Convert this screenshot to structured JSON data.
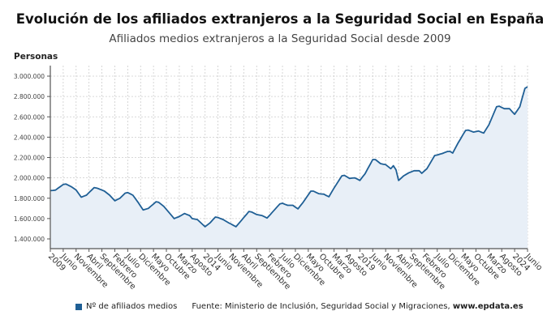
{
  "chart_data": {
    "type": "area",
    "title": "Evolución de los afiliados extranjeros a la Seguridad Social en España",
    "subtitle": "Afiliados medios extranjeros a la Seguridad Social desde 2009",
    "ylabel": "Personas",
    "ylim": [
      1300000,
      3100000
    ],
    "yticks": [
      "1.400.000",
      "1.600.000",
      "1.800.000",
      "2.000.000",
      "2.200.000",
      "2.400.000",
      "2.600.000",
      "2.800.000",
      "3.000.000"
    ],
    "ytick_values": [
      1400000,
      1600000,
      1800000,
      2000000,
      2200000,
      2400000,
      2600000,
      2800000,
      3000000
    ],
    "x_start": "2009-01",
    "x_end": "2024-06",
    "x_frequency": "monthly",
    "xticks": [
      "2009",
      "Junio",
      "Noviembre",
      "Abril",
      "Septiembre",
      "Febrero",
      "Julio",
      "Diciembre",
      "Mayo",
      "Octubre",
      "Marzo",
      "Agosto",
      "2014",
      "Junio",
      "Noviembre",
      "Abril",
      "Septiembre",
      "Febrero",
      "Julio",
      "Diciembre",
      "Mayo",
      "Octubre",
      "Marzo",
      "Agosto",
      "2019",
      "Junio",
      "Noviembre",
      "Abril",
      "Septiembre",
      "Febrero",
      "Julio",
      "Diciembre",
      "Mayo",
      "Octubre",
      "Marzo",
      "Agosto",
      "2024",
      "Junio"
    ],
    "grid": true,
    "legend_position": "bottom",
    "series": [
      {
        "name": "Nº de afiliados medios",
        "color": "#1f5f95",
        "fill": "#e8eff7",
        "values": [
          1875000,
          1877000,
          1880000,
          1898000,
          1917000,
          1935000,
          1940000,
          1928000,
          1915000,
          1898000,
          1880000,
          1845000,
          1810000,
          1820000,
          1830000,
          1855000,
          1880000,
          1905000,
          1900000,
          1890000,
          1880000,
          1870000,
          1850000,
          1830000,
          1802000,
          1775000,
          1788000,
          1800000,
          1825000,
          1850000,
          1855000,
          1843000,
          1830000,
          1795000,
          1760000,
          1722000,
          1685000,
          1692000,
          1700000,
          1722000,
          1743000,
          1765000,
          1760000,
          1740000,
          1720000,
          1690000,
          1660000,
          1630000,
          1600000,
          1610000,
          1620000,
          1635000,
          1650000,
          1640000,
          1630000,
          1600000,
          1595000,
          1590000,
          1567000,
          1543000,
          1520000,
          1540000,
          1560000,
          1588000,
          1615000,
          1610000,
          1600000,
          1590000,
          1575000,
          1560000,
          1547000,
          1533000,
          1520000,
          1550000,
          1580000,
          1610000,
          1640000,
          1670000,
          1665000,
          1652000,
          1640000,
          1635000,
          1630000,
          1618000,
          1605000,
          1632000,
          1660000,
          1688000,
          1717000,
          1745000,
          1750000,
          1740000,
          1730000,
          1730000,
          1730000,
          1712000,
          1695000,
          1728000,
          1760000,
          1797000,
          1833000,
          1870000,
          1870000,
          1857000,
          1845000,
          1842000,
          1840000,
          1827000,
          1815000,
          1857000,
          1900000,
          1940000,
          1980000,
          2020000,
          2025000,
          2010000,
          1995000,
          1998000,
          2000000,
          1988000,
          1975000,
          2008000,
          2040000,
          2087000,
          2133000,
          2180000,
          2180000,
          2160000,
          2140000,
          2135000,
          2130000,
          2110000,
          2090000,
          2120000,
          2080000,
          1975000,
          1998000,
          2020000,
          2035000,
          2050000,
          2060000,
          2070000,
          2070000,
          2070000,
          2045000,
          2068000,
          2090000,
          2133000,
          2177000,
          2220000,
          2225000,
          2233000,
          2240000,
          2250000,
          2260000,
          2260000,
          2244000,
          2292000,
          2340000,
          2382000,
          2425000,
          2467000,
          2470000,
          2460000,
          2450000,
          2455000,
          2460000,
          2450000,
          2440000,
          2480000,
          2520000,
          2580000,
          2640000,
          2700000,
          2705000,
          2692000,
          2680000,
          2680000,
          2680000,
          2652000,
          2625000,
          2662000,
          2700000,
          2790000,
          2880000,
          2895000
        ]
      }
    ]
  },
  "legend": {
    "label": "Nº de afiliados medios",
    "color": "#1f5f95"
  },
  "source": {
    "text": "Fuente: Ministerio de Inclusión, Seguridad Social y Migraciones, ",
    "site": "www.epdata.es"
  }
}
